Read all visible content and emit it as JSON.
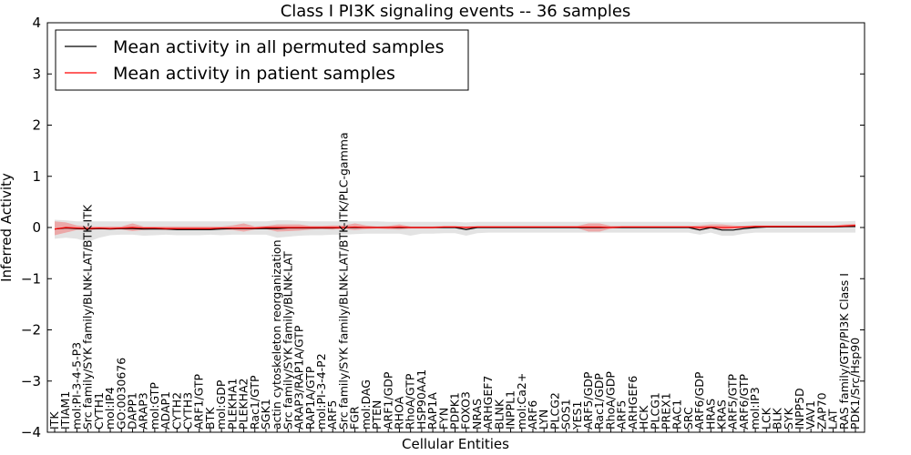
{
  "chart_data": {
    "type": "line",
    "title": "Class I PI3K signaling events -- 36 samples",
    "xlabel": "Cellular Entities",
    "ylabel": "Inferred Activity",
    "ylim": [
      -4,
      4
    ],
    "yticks": [
      "−4",
      "−3",
      "−2",
      "−1",
      "0",
      "1",
      "2",
      "3",
      "4"
    ],
    "grid": false,
    "legend_position": "upper-left",
    "categories": [
      "ITK",
      "ITIAM1",
      "mol:PI-3-4-5-P3",
      "Src family/SYK family/BLNK-LAT/BTK-ITK",
      "CYTH1",
      "mol:IP4",
      "GO:0030676",
      "DAPP1",
      "ARAP3",
      "mol:GTP",
      "ADAP1",
      "CYTH2",
      "CYTH3",
      "ARF1/GTP",
      "BTK",
      "mol:GDP",
      "PLEKHA1",
      "PLEKHA2",
      "Rac1/GTP",
      "SGK1",
      "actin cytoskeleton reorganization",
      "Src family/SYK family/BLNK-LAT",
      "ARAP3/RAP1A/GTP",
      "RAP1A/GTP",
      "mol:PI-3-4-P2",
      "ARF5",
      "Src family/SYK family/BLNK-LAT/BTK-ITK/PLC-gamma",
      "FGR",
      "mol:DAG",
      "PTEN",
      "ARF1/GDP",
      "RHOA",
      "RhoA/GTP",
      "HSP90AA1",
      "RAP1A",
      "FYN",
      "PDPK1",
      "FOXO3",
      "NRAS",
      "ARHGEF7",
      "BLNK",
      "INPPL1",
      "mol:Ca2+",
      "ARF6",
      "LYN",
      "PLCG2",
      "SOS1",
      "YES1",
      "ARF5/GDP",
      "Rac1/GDP",
      "RhoA/GDP",
      "ARF5",
      "ARHGEF6",
      "HCK",
      "PLCG1",
      "PREX1",
      "RAC1",
      "SRC",
      "ARF6/GDP",
      "HRAS",
      "KRAS",
      "ARF5/GTP",
      "ARF6/GTP",
      "mol:IP3",
      "LCK",
      "BLK",
      "SYK",
      "INPP5D",
      "VAV1",
      "ZAP70",
      "LAT",
      "RAS family/GTP/PI3K Class I",
      "PDK1/Src/Hsp90"
    ],
    "series": [
      {
        "name": "Mean activity in all permuted samples",
        "color": "#000000",
        "values": [
          -0.03,
          -0.01,
          -0.02,
          -0.03,
          -0.02,
          -0.03,
          -0.02,
          -0.02,
          -0.03,
          -0.03,
          -0.03,
          -0.04,
          -0.04,
          -0.04,
          -0.04,
          -0.03,
          -0.02,
          -0.02,
          -0.02,
          -0.02,
          -0.02,
          -0.01,
          -0.01,
          -0.01,
          -0.01,
          -0.01,
          0.0,
          0.0,
          0.0,
          0.0,
          0.0,
          0.0,
          0.0,
          0.0,
          0.0,
          0.0,
          0.0,
          -0.04,
          0.0,
          0.0,
          0.0,
          0.0,
          0.0,
          0.0,
          0.0,
          0.0,
          0.0,
          0.0,
          0.0,
          0.0,
          0.0,
          0.0,
          0.0,
          0.0,
          0.0,
          0.0,
          0.0,
          0.0,
          -0.05,
          0.0,
          -0.05,
          -0.05,
          -0.02,
          0.0,
          0.01,
          0.01,
          0.01,
          0.01,
          0.01,
          0.01,
          0.01,
          0.02,
          0.02
        ],
        "band_low": [
          -0.22,
          -0.2,
          -0.22,
          -0.28,
          -0.2,
          -0.15,
          -0.14,
          -0.14,
          -0.16,
          -0.15,
          -0.14,
          -0.15,
          -0.15,
          -0.15,
          -0.14,
          -0.15,
          -0.14,
          -0.14,
          -0.14,
          -0.14,
          -0.2,
          -0.18,
          -0.16,
          -0.15,
          -0.15,
          -0.14,
          -0.14,
          -0.13,
          -0.12,
          -0.12,
          -0.12,
          -0.12,
          -0.16,
          -0.12,
          -0.12,
          -0.11,
          -0.11,
          -0.16,
          -0.11,
          -0.1,
          -0.1,
          -0.1,
          -0.1,
          -0.1,
          -0.1,
          -0.1,
          -0.1,
          -0.1,
          -0.1,
          -0.1,
          -0.1,
          -0.1,
          -0.1,
          -0.1,
          -0.1,
          -0.1,
          -0.1,
          -0.1,
          -0.14,
          -0.1,
          -0.16,
          -0.16,
          -0.12,
          -0.1,
          -0.1,
          -0.1,
          -0.1,
          -0.1,
          -0.1,
          -0.1,
          -0.1,
          -0.1,
          -0.1
        ],
        "band_high": [
          0.15,
          0.14,
          0.12,
          0.12,
          0.12,
          0.12,
          0.12,
          0.12,
          0.12,
          0.12,
          0.12,
          0.12,
          0.12,
          0.12,
          0.12,
          0.12,
          0.12,
          0.12,
          0.12,
          0.12,
          0.14,
          0.14,
          0.13,
          0.12,
          0.12,
          0.12,
          0.12,
          0.12,
          0.12,
          0.12,
          0.11,
          0.11,
          0.11,
          0.11,
          0.11,
          0.11,
          0.11,
          0.1,
          0.11,
          0.11,
          0.11,
          0.11,
          0.11,
          0.11,
          0.11,
          0.11,
          0.11,
          0.11,
          0.11,
          0.11,
          0.11,
          0.11,
          0.11,
          0.11,
          0.11,
          0.11,
          0.11,
          0.11,
          0.1,
          0.11,
          0.1,
          0.1,
          0.11,
          0.12,
          0.12,
          0.12,
          0.12,
          0.12,
          0.12,
          0.12,
          0.12,
          0.12,
          0.13
        ]
      },
      {
        "name": "Mean activity in patient samples",
        "color": "#ff0000",
        "values": [
          -0.03,
          0.0,
          -0.01,
          -0.02,
          -0.01,
          -0.02,
          -0.01,
          0.0,
          -0.01,
          -0.01,
          -0.02,
          -0.02,
          -0.02,
          -0.02,
          -0.02,
          -0.01,
          -0.01,
          -0.01,
          -0.01,
          0.0,
          0.0,
          0.0,
          0.0,
          0.0,
          0.0,
          0.0,
          0.0,
          0.01,
          0.0,
          0.0,
          0.0,
          0.01,
          0.0,
          0.0,
          0.0,
          0.01,
          0.01,
          0.0,
          0.01,
          0.01,
          0.01,
          0.01,
          0.01,
          0.01,
          0.01,
          0.01,
          0.01,
          0.01,
          0.01,
          0.01,
          0.0,
          0.01,
          0.01,
          0.01,
          0.01,
          0.01,
          0.01,
          0.01,
          0.0,
          0.01,
          0.0,
          0.0,
          0.01,
          0.02,
          0.02,
          0.02,
          0.02,
          0.02,
          0.02,
          0.02,
          0.02,
          0.03,
          0.04
        ],
        "band_low": [
          -0.15,
          -0.1,
          -0.05,
          -0.05,
          -0.04,
          -0.04,
          -0.04,
          -0.07,
          -0.05,
          -0.04,
          -0.05,
          -0.05,
          -0.05,
          -0.05,
          -0.05,
          -0.04,
          -0.05,
          -0.08,
          -0.04,
          -0.03,
          -0.08,
          -0.07,
          -0.06,
          -0.04,
          -0.03,
          -0.04,
          -0.03,
          -0.05,
          -0.03,
          -0.02,
          -0.03,
          -0.04,
          -0.02,
          -0.02,
          -0.02,
          -0.01,
          -0.01,
          -0.02,
          -0.01,
          -0.01,
          -0.01,
          -0.01,
          -0.01,
          -0.01,
          -0.01,
          -0.01,
          -0.01,
          -0.01,
          -0.08,
          -0.08,
          -0.02,
          -0.01,
          -0.01,
          -0.01,
          -0.01,
          -0.01,
          -0.01,
          -0.01,
          -0.05,
          -0.02,
          -0.04,
          -0.02,
          -0.01,
          0.0,
          0.0,
          0.0,
          0.0,
          0.0,
          0.0,
          0.0,
          0.0,
          0.0,
          0.01
        ],
        "band_high": [
          0.12,
          0.1,
          0.04,
          0.02,
          0.02,
          0.02,
          0.02,
          0.08,
          0.02,
          0.02,
          0.02,
          0.02,
          0.02,
          0.02,
          0.02,
          0.02,
          0.04,
          0.08,
          0.02,
          0.03,
          0.06,
          0.06,
          0.06,
          0.03,
          0.03,
          0.04,
          0.04,
          0.08,
          0.04,
          0.02,
          0.03,
          0.06,
          0.02,
          0.02,
          0.02,
          0.03,
          0.03,
          0.02,
          0.03,
          0.03,
          0.03,
          0.03,
          0.03,
          0.03,
          0.03,
          0.03,
          0.03,
          0.03,
          0.08,
          0.08,
          0.03,
          0.03,
          0.03,
          0.03,
          0.03,
          0.03,
          0.03,
          0.03,
          0.04,
          0.06,
          0.06,
          0.04,
          0.03,
          0.04,
          0.04,
          0.04,
          0.04,
          0.04,
          0.04,
          0.04,
          0.04,
          0.06,
          0.07
        ]
      }
    ],
    "band_colors": {
      "permuted": "#d9d9d9",
      "patient": "#f08080"
    }
  }
}
